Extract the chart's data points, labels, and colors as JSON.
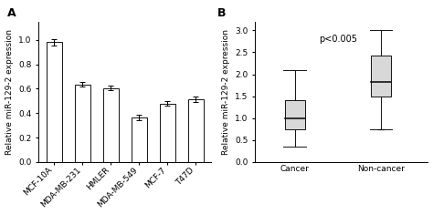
{
  "panel_A": {
    "categories": [
      "MCF-10A",
      "MDA-MB-231",
      "HMLER",
      "MDA-MB-549",
      "MCF-7",
      "T47D"
    ],
    "values": [
      0.98,
      0.635,
      0.605,
      0.365,
      0.48,
      0.515
    ],
    "errors": [
      0.025,
      0.02,
      0.018,
      0.022,
      0.02,
      0.025
    ],
    "ylabel": "Relative miR-129-2 expression",
    "ylim": [
      0,
      1.15
    ],
    "yticks": [
      0,
      0.2,
      0.4,
      0.6,
      0.8,
      1.0
    ],
    "label": "A"
  },
  "panel_B": {
    "categories": [
      "Cancer",
      "Non-cancer"
    ],
    "cancer_box": {
      "whisker_low": 0.35,
      "q1": 0.75,
      "median": 1.0,
      "q3": 1.4,
      "whisker_high": 2.1
    },
    "noncancer_box": {
      "whisker_low": 0.75,
      "q1": 1.5,
      "median": 1.82,
      "q3": 2.42,
      "whisker_high": 3.0
    },
    "ylabel": "Relative miR-129-2 expression",
    "ylim": [
      0,
      3.2
    ],
    "yticks": [
      0,
      0.5,
      1.0,
      1.5,
      2.0,
      2.5,
      3.0
    ],
    "pvalue_text": "p<0.005",
    "label": "B"
  },
  "bar_color": "#ffffff",
  "bar_edgecolor": "#111111",
  "box_facecolor": "#d8d8d8",
  "box_edgecolor": "#111111",
  "tick_fontsize": 6.5,
  "label_fontsize": 6.5,
  "panel_label_fontsize": 9
}
